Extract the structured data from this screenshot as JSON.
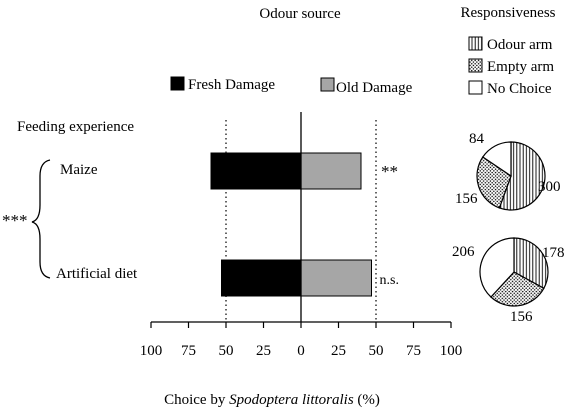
{
  "chart_data": {
    "type": "bar",
    "orientation": "horizontal",
    "diverging": true,
    "column_header": "Odour source",
    "row_header": "Feeding experience",
    "categories": [
      "Maize",
      "Artificial diet"
    ],
    "series": [
      {
        "name": "Fresh Damage",
        "color": "#000000",
        "values": [
          60,
          53
        ]
      },
      {
        "name": "Old Damage",
        "color": "#a6a6a6",
        "values": [
          40,
          47
        ]
      }
    ],
    "significance": [
      "**",
      "n.s."
    ],
    "group_significance": "***",
    "x_ticks": [
      "100",
      "75",
      "50",
      "25",
      "0",
      "25",
      "50",
      "75",
      "100"
    ],
    "xlim": [
      -100,
      100
    ],
    "reference_lines": [
      -50,
      50
    ],
    "xlabel_prefix": "Choice by ",
    "xlabel_species": "Spodoptera littoralis",
    "xlabel_suffix": " (%)",
    "responsiveness": {
      "title": "Responsiveness",
      "legend": [
        {
          "name": "Odour arm",
          "pattern": "vertical-lines"
        },
        {
          "name": "Empty arm",
          "pattern": "dots"
        },
        {
          "name": "No Choice",
          "pattern": "blank"
        }
      ],
      "pies": [
        {
          "category": "Maize",
          "values": [
            300,
            156,
            84
          ],
          "labels": [
            "300",
            "156",
            "84"
          ]
        },
        {
          "category": "Artificial diet",
          "values": [
            178,
            156,
            206
          ],
          "labels": [
            "178",
            "156",
            "206"
          ]
        }
      ]
    }
  }
}
